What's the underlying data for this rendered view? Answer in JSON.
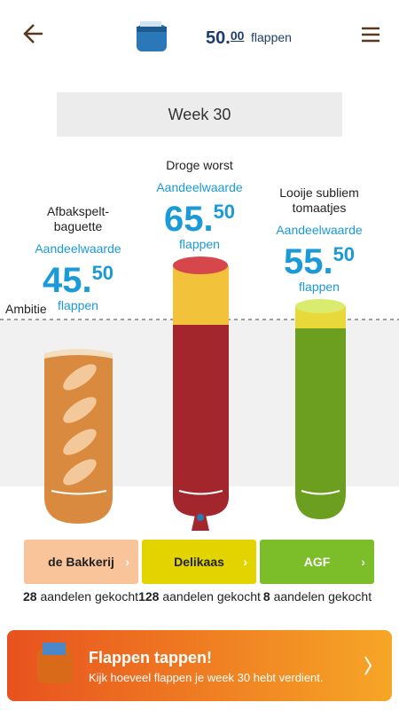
{
  "header": {
    "balance_whole": "50.",
    "balance_cents": "00",
    "balance_unit": "flappen"
  },
  "week": "Week 30",
  "ambition_label": "Ambitie",
  "products": [
    {
      "name_lines": [
        "Afbakspelt-",
        "baguette"
      ],
      "value_label": "Aandeelwaarde",
      "value_whole": "45.",
      "value_cents": "50",
      "value_unit": "flappen",
      "department": "de Bakkerij",
      "shares": "28",
      "shares_label": "aandelen gekocht"
    },
    {
      "name_lines": [
        "Droge worst"
      ],
      "value_label": "Aandeelwaarde",
      "value_whole": "65.",
      "value_cents": "50",
      "value_unit": "flappen",
      "department": "Delikaas",
      "shares": "128",
      "shares_label": "aandelen gekocht"
    },
    {
      "name_lines": [
        "Looije subliem",
        "tomaatjes"
      ],
      "value_label": "Aandeelwaarde",
      "value_whole": "55.",
      "value_cents": "50",
      "value_unit": "flappen",
      "department": "AGF",
      "shares": "8",
      "shares_label": "aandelen gekocht"
    }
  ],
  "banner": {
    "title": "Flappen tappen!",
    "subtitle": "Kijk hoeveel flappen je week 30 hebt verdient."
  }
}
